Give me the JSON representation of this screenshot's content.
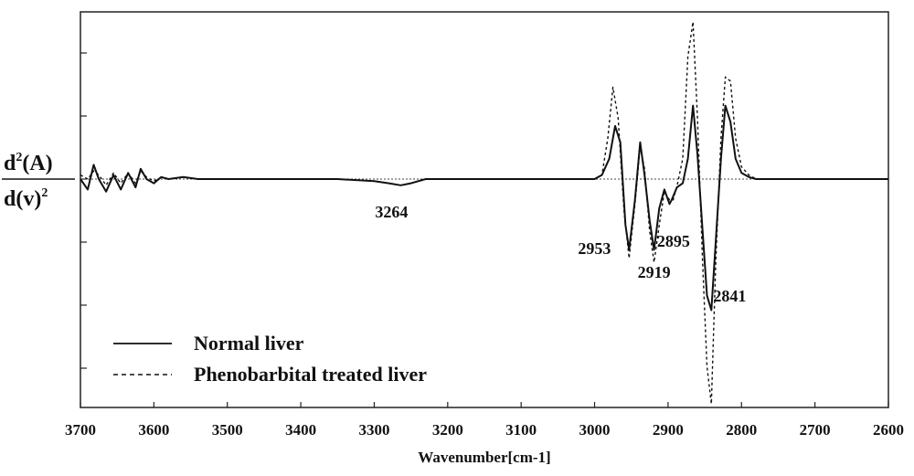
{
  "chart_data": {
    "type": "line",
    "xlabel": "Wavenumber[cm-1]",
    "ylabel_top": "d2(A)",
    "ylabel_bottom": "d(v)2",
    "xlim": [
      3700,
      2600
    ],
    "x_reversed": true,
    "ylim": [
      -1.0,
      1.0
    ],
    "x_ticks": [
      3700,
      3600,
      3500,
      3400,
      3300,
      3200,
      3100,
      3000,
      2900,
      2800,
      2700,
      2600
    ],
    "y_tick_labels_shown": false,
    "grid": false,
    "legend_position": "bottom-left",
    "series": [
      {
        "name": "Normal liver",
        "style": "solid",
        "x": [
          3700,
          3690,
          3682,
          3675,
          3665,
          3655,
          3645,
          3635,
          3625,
          3618,
          3610,
          3600,
          3590,
          3580,
          3560,
          3540,
          3500,
          3450,
          3400,
          3350,
          3300,
          3280,
          3264,
          3250,
          3230,
          3200,
          3150,
          3100,
          3050,
          3000,
          2990,
          2980,
          2972,
          2965,
          2958,
          2953,
          2945,
          2938,
          2932,
          2925,
          2919,
          2912,
          2905,
          2898,
          2895,
          2888,
          2880,
          2873,
          2866,
          2860,
          2853,
          2847,
          2841,
          2835,
          2828,
          2822,
          2815,
          2808,
          2800,
          2790,
          2780,
          2760,
          2730,
          2700,
          2650,
          2600
        ],
        "y": [
          0.0,
          -0.05,
          0.07,
          0.0,
          -0.06,
          0.02,
          -0.05,
          0.03,
          -0.04,
          0.05,
          0.0,
          -0.02,
          0.01,
          0.0,
          0.01,
          0.0,
          0.0,
          0.0,
          0.0,
          0.0,
          -0.01,
          -0.02,
          -0.03,
          -0.02,
          0.0,
          0.0,
          0.0,
          0.0,
          0.0,
          0.0,
          0.02,
          0.1,
          0.26,
          0.18,
          -0.22,
          -0.34,
          -0.1,
          0.18,
          0.02,
          -0.2,
          -0.34,
          -0.14,
          -0.05,
          -0.12,
          -0.1,
          -0.04,
          -0.02,
          0.1,
          0.36,
          0.12,
          -0.25,
          -0.56,
          -0.63,
          -0.3,
          0.1,
          0.36,
          0.28,
          0.1,
          0.03,
          0.01,
          0.0,
          0.0,
          0.0,
          0.0,
          0.0,
          0.0
        ]
      },
      {
        "name": "Phenobarbital treated liver",
        "style": "dashed",
        "x": [
          3700,
          3690,
          3682,
          3675,
          3665,
          3655,
          3645,
          3635,
          3625,
          3618,
          3610,
          3600,
          3590,
          3580,
          3560,
          3540,
          3500,
          3450,
          3400,
          3350,
          3300,
          3280,
          3264,
          3250,
          3230,
          3200,
          3150,
          3100,
          3050,
          3000,
          2990,
          2982,
          2975,
          2968,
          2960,
          2953,
          2945,
          2938,
          2932,
          2925,
          2919,
          2912,
          2905,
          2898,
          2893,
          2887,
          2880,
          2873,
          2866,
          2860,
          2853,
          2847,
          2841,
          2835,
          2828,
          2822,
          2815,
          2808,
          2800,
          2790,
          2780,
          2760,
          2730,
          2700,
          2650,
          2600
        ],
        "y": [
          0.02,
          0.0,
          0.04,
          0.02,
          -0.03,
          0.03,
          -0.02,
          0.03,
          -0.02,
          0.04,
          0.01,
          -0.01,
          0.01,
          0.0,
          0.01,
          0.0,
          0.0,
          0.0,
          0.0,
          0.0,
          -0.01,
          -0.02,
          -0.03,
          -0.02,
          0.0,
          0.0,
          0.0,
          0.0,
          0.0,
          0.0,
          0.02,
          0.2,
          0.45,
          0.3,
          -0.15,
          -0.38,
          -0.12,
          0.16,
          0.05,
          -0.25,
          -0.4,
          -0.22,
          -0.06,
          -0.1,
          -0.1,
          -0.02,
          0.1,
          0.6,
          0.77,
          0.3,
          -0.4,
          -0.9,
          -1.08,
          -0.4,
          0.2,
          0.5,
          0.48,
          0.2,
          0.06,
          0.02,
          0.0,
          0.0,
          0.0,
          0.0,
          0.0,
          0.0
        ]
      }
    ],
    "annotations": [
      {
        "text": "3264",
        "x": 3264,
        "y": -0.1
      },
      {
        "text": "2953",
        "x": 2953,
        "y": -0.26
      },
      {
        "text": "2919",
        "x": 2919,
        "y": -0.4
      },
      {
        "text": "2895",
        "x": 2895,
        "y": -0.25
      },
      {
        "text": "2841",
        "x": 2841,
        "y": -0.5
      }
    ]
  }
}
